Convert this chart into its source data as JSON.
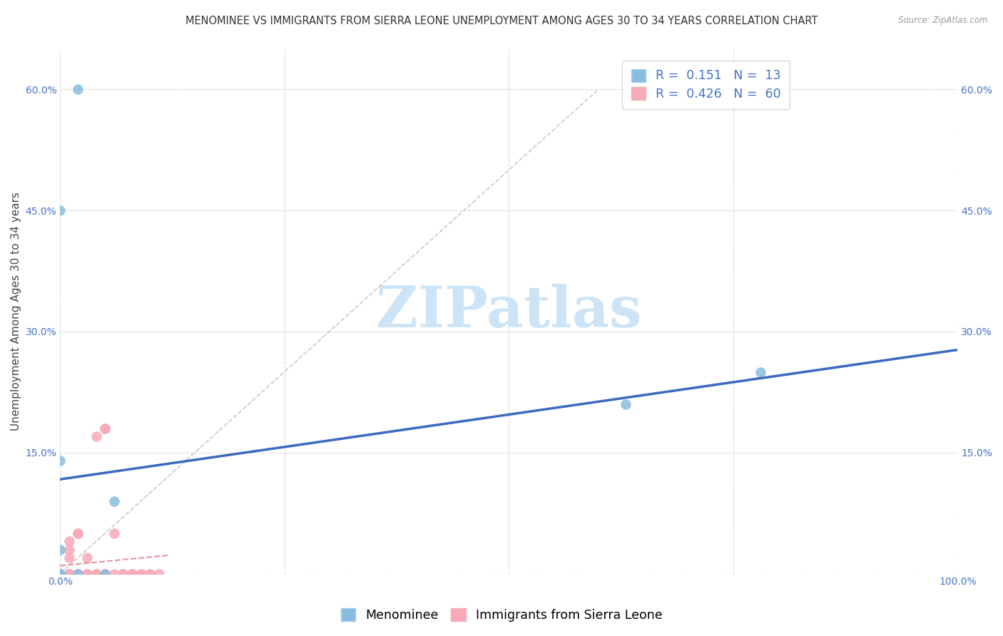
{
  "title": "MENOMINEE VS IMMIGRANTS FROM SIERRA LEONE UNEMPLOYMENT AMONG AGES 30 TO 34 YEARS CORRELATION CHART",
  "source": "Source: ZipAtlas.com",
  "ylabel": "Unemployment Among Ages 30 to 34 years",
  "xlim": [
    0.0,
    1.0
  ],
  "ylim": [
    0.0,
    0.65
  ],
  "xticks": [
    0.0,
    0.25,
    0.5,
    0.75,
    1.0
  ],
  "xticklabels": [
    "0.0%",
    "",
    "",
    "",
    "100.0%"
  ],
  "yticks": [
    0.0,
    0.15,
    0.3,
    0.45,
    0.6
  ],
  "yticklabels": [
    "",
    "15.0%",
    "30.0%",
    "45.0%",
    "60.0%"
  ],
  "menominee_color": "#89bde0",
  "sierra_leone_color": "#f7aab8",
  "trend_menominee_color": "#3a6abf",
  "trend_sierra_leone_color": "#e8909e",
  "diagonal_color": "#c8c8c8",
  "legend_R_menominee": "0.151",
  "legend_N_menominee": "13",
  "legend_R_sierra_leone": "0.426",
  "legend_N_sierra_leone": "60",
  "legend_label_menominee": "Menominee",
  "legend_label_sierra_leone": "Immigrants from Sierra Leone",
  "menominee_x": [
    0.02,
    0.0,
    0.0,
    0.0,
    0.06,
    0.05,
    0.63,
    0.78,
    0.0,
    0.0,
    0.0,
    0.0,
    0.02
  ],
  "menominee_y": [
    0.6,
    0.45,
    0.14,
    0.0,
    0.09,
    0.0,
    0.21,
    0.25,
    0.0,
    0.03,
    0.0,
    0.0,
    0.0
  ],
  "sierra_leone_x": [
    0.0,
    0.0,
    0.0,
    0.0,
    0.0,
    0.0,
    0.0,
    0.0,
    0.0,
    0.0,
    0.0,
    0.0,
    0.0,
    0.0,
    0.0,
    0.0,
    0.0,
    0.0,
    0.0,
    0.0,
    0.01,
    0.01,
    0.01,
    0.01,
    0.01,
    0.01,
    0.01,
    0.01,
    0.02,
    0.02,
    0.02,
    0.02,
    0.02,
    0.03,
    0.03,
    0.03,
    0.03,
    0.04,
    0.04,
    0.04,
    0.04,
    0.04,
    0.05,
    0.05,
    0.05,
    0.05,
    0.06,
    0.06,
    0.07,
    0.07,
    0.08,
    0.08,
    0.08,
    0.08,
    0.08,
    0.09,
    0.09,
    0.1,
    0.1,
    0.11
  ],
  "sierra_leone_y": [
    0.0,
    0.0,
    0.0,
    0.0,
    0.0,
    0.0,
    0.0,
    0.0,
    0.0,
    0.0,
    0.0,
    0.0,
    0.0,
    0.0,
    0.0,
    0.0,
    0.0,
    0.0,
    0.0,
    0.0,
    0.0,
    0.0,
    0.0,
    0.0,
    0.0,
    0.02,
    0.03,
    0.04,
    0.0,
    0.0,
    0.0,
    0.05,
    0.05,
    0.0,
    0.0,
    0.0,
    0.02,
    0.0,
    0.0,
    0.0,
    0.0,
    0.17,
    0.0,
    0.18,
    0.18,
    0.0,
    0.05,
    0.0,
    0.0,
    0.0,
    0.0,
    0.0,
    0.0,
    0.0,
    0.0,
    0.0,
    0.0,
    0.0,
    0.0,
    0.0
  ],
  "background_color": "#ffffff",
  "grid_color": "#d8d8d8",
  "watermark_text": "ZIPatlas",
  "watermark_color": "#cce4f5",
  "tick_color": "#4472c4",
  "title_fontsize": 10.5,
  "axis_label_fontsize": 11,
  "tick_fontsize": 10,
  "legend_fontsize": 12.5
}
